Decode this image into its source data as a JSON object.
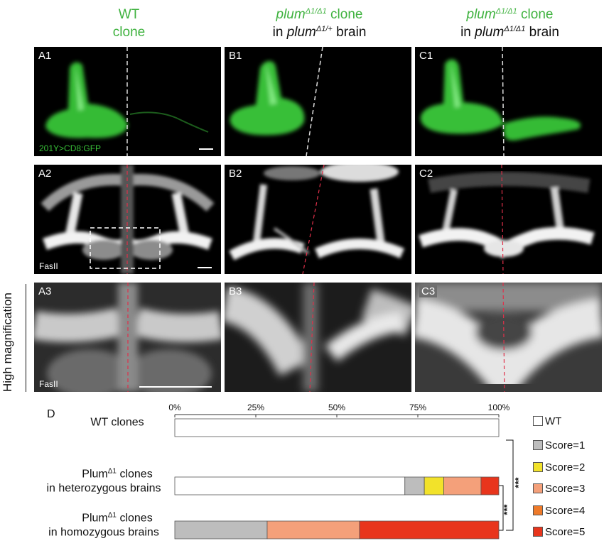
{
  "columns": [
    {
      "title_green": "WT",
      "title_green2": "clone"
    },
    {
      "title_italic": "plum",
      "title_sup": "Δ1/Δ1",
      "title_rest": " clone",
      "title_line2_pre": "in ",
      "title_line2_italic": "plum",
      "title_line2_sup": "Δ1/+",
      "title_line2_post": " brain"
    },
    {
      "title_italic": "plum",
      "title_sup": "Δ1/Δ1",
      "title_rest": " clone",
      "title_line2_pre": "in ",
      "title_line2_italic": "plum",
      "title_line2_sup": "Δ1/Δ1",
      "title_line2_post": " brain"
    }
  ],
  "panels": {
    "A1": "A1",
    "B1": "B1",
    "C1": "C1",
    "A2": "A2",
    "B2": "B2",
    "C2": "C2",
    "A3": "A3",
    "B3": "B3",
    "C3": "C3",
    "gfp_tag": "201Y>CD8:GFP",
    "fasii_tag_a2": "FasII",
    "fasii_tag_a3": "FasII"
  },
  "side_label": "High magnification",
  "panel_d_label": "D",
  "colors": {
    "gfp": "#3fd33f",
    "wt": "#ffffff",
    "score1": "#bdbdbd",
    "score2": "#f2e22a",
    "score3": "#f4a07a",
    "score4": "#ee7a2a",
    "score5": "#e8351c",
    "midline": "#e0304a"
  },
  "chart_data": {
    "type": "bar",
    "orientation": "horizontal",
    "stacked": true,
    "x_ticks": [
      "0%",
      "25%",
      "50%",
      "75%",
      "100%"
    ],
    "xlim": [
      0,
      100
    ],
    "categories": [
      [
        "WT clones"
      ],
      [
        "Plumᐞ¹ clones",
        "in heterozygous brains"
      ],
      [
        "Plumᐞ¹ clones",
        "in homozygous brains"
      ]
    ],
    "category_labels": [
      {
        "line1": "WT clones",
        "line2": ""
      },
      {
        "line1_pre": "Plum",
        "line1_sup": "Δ1",
        "line1_post": " clones",
        "line2": "in heterozygous brains"
      },
      {
        "line1_pre": "Plum",
        "line1_sup": "Δ1",
        "line1_post": " clones",
        "line2": "in homozygous brains"
      }
    ],
    "series": [
      {
        "name": "WT",
        "values": [
          100,
          71,
          0
        ]
      },
      {
        "name": "Score=1",
        "values": [
          0,
          6,
          28.5
        ]
      },
      {
        "name": "Score=2",
        "values": [
          0,
          6,
          0
        ]
      },
      {
        "name": "Score=3",
        "values": [
          0,
          11.5,
          28.5
        ]
      },
      {
        "name": "Score=4",
        "values": [
          0,
          0,
          0
        ]
      },
      {
        "name": "Score=5",
        "values": [
          0,
          5.5,
          43
        ]
      }
    ],
    "legend_position": "right",
    "significance": [
      "***",
      "***"
    ]
  }
}
